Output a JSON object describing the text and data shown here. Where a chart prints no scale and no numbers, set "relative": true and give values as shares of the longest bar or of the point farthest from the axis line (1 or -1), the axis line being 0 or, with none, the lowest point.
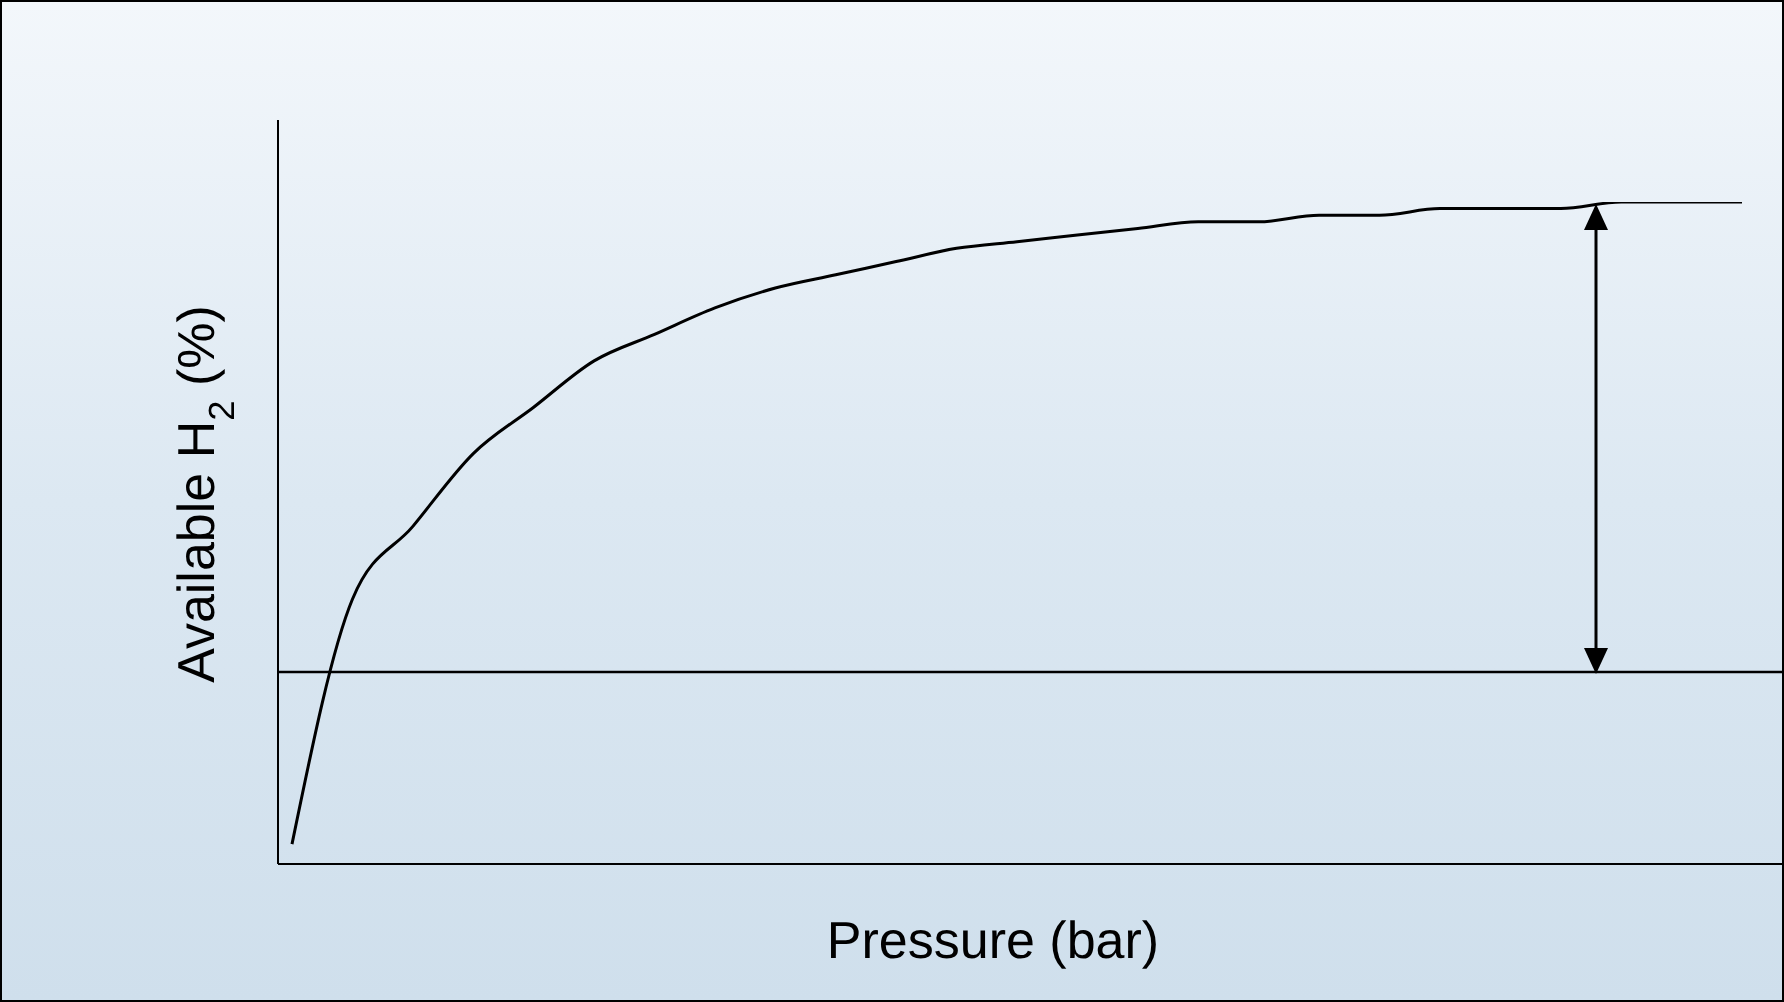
{
  "chart_data": {
    "type": "line",
    "relative": true,
    "xlabel": "Pressure (bar)",
    "ylabel": "Available  H$_{2}$ (%)",
    "categories": [
      null,
      null,
      null,
      null,
      null,
      null,
      null,
      null,
      null,
      null,
      null,
      null,
      null,
      null,
      null,
      null,
      null,
      null,
      null,
      null,
      null,
      null,
      null,
      null,
      null
    ],
    "series": [
      {
        "color": "#000000",
        "values": [
          0.03,
          0.4,
          0.51,
          0.62,
          0.69,
          0.76,
          0.8,
          0.84,
          0.87,
          0.89,
          0.91,
          0.93,
          0.94,
          0.95,
          0.96,
          0.97,
          0.97,
          0.98,
          0.98,
          0.99,
          0.99,
          0.99,
          1.0,
          1.0,
          1.0
        ]
      }
    ],
    "ref_lines": [
      {
        "axis": "y",
        "value": 0.29,
        "color": "#000000"
      }
    ],
    "marker": "none",
    "line_style": "solid"
  }
}
